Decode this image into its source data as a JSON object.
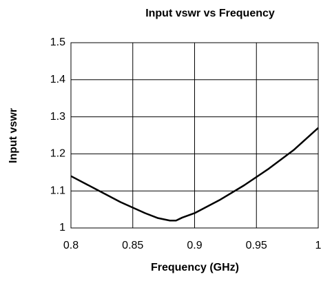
{
  "chart_data": {
    "type": "line",
    "title": "Input vswr vs Frequency",
    "x_label": "Frequency (GHz)",
    "y_label": "Input vswr",
    "x": [
      0.8,
      0.82,
      0.84,
      0.86,
      0.87,
      0.88,
      0.885,
      0.89,
      0.9,
      0.92,
      0.94,
      0.96,
      0.98,
      1.0
    ],
    "series": [
      {
        "name": "Input vswr",
        "color": "#000000",
        "values": [
          1.14,
          1.105,
          1.07,
          1.04,
          1.027,
          1.02,
          1.02,
          1.028,
          1.04,
          1.075,
          1.115,
          1.16,
          1.21,
          1.27
        ]
      }
    ],
    "xlim": [
      0.8,
      1
    ],
    "xticks": [
      0.8,
      0.85,
      0.9,
      0.95,
      1
    ],
    "ylim": [
      1,
      1.5
    ],
    "yticks": [
      1,
      1.1,
      1.2,
      1.3,
      1.4,
      1.5
    ],
    "grid": true
  }
}
